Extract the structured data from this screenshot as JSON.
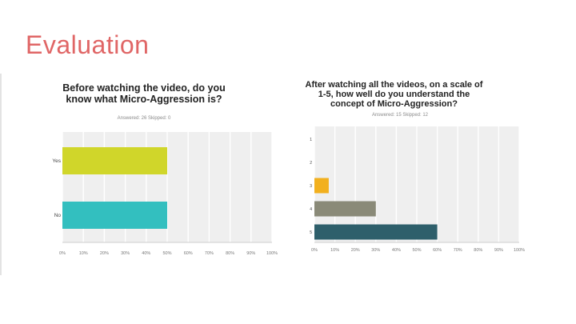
{
  "slide": {
    "title": "Evaluation"
  },
  "chart_data": [
    {
      "type": "bar",
      "orientation": "horizontal",
      "title": "Before watching the video, do you know what Micro-Aggression is?",
      "subtitle": "Answered: 26    Skipped: 0",
      "categories": [
        "Yes",
        "No"
      ],
      "values": [
        50,
        50
      ],
      "colors": [
        "#d0d62a",
        "#33bfbf"
      ],
      "xlim": [
        0,
        100
      ],
      "xticks": [
        "0%",
        "10%",
        "20%",
        "30%",
        "40%",
        "50%",
        "60%",
        "70%",
        "80%",
        "90%",
        "100%"
      ],
      "grid": true
    },
    {
      "type": "bar",
      "orientation": "horizontal",
      "title": "After watching all the videos, on a scale of 1-5, how well do you understand the concept of Micro-Aggression?",
      "subtitle": "Answered: 15    Skipped: 12",
      "categories": [
        "1",
        "2",
        "3",
        "4",
        "5"
      ],
      "values": [
        0,
        0,
        7,
        30,
        60
      ],
      "colors": [
        "#f2b01e",
        "#f2b01e",
        "#f2b01e",
        "#8a8a78",
        "#2e5f6b"
      ],
      "xlim": [
        0,
        100
      ],
      "xticks": [
        "0%",
        "10%",
        "20%",
        "30%",
        "40%",
        "50%",
        "60%",
        "70%",
        "80%",
        "90%",
        "100%"
      ],
      "grid": true
    }
  ]
}
